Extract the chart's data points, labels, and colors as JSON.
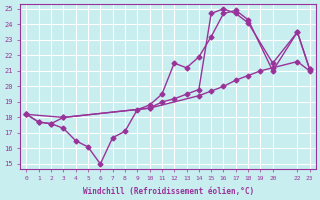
{
  "xlabel": "Windchill (Refroidissement éolien,°C)",
  "bg_color": "#c8eef0",
  "line_color": "#993399",
  "grid_color": "#ffffff",
  "xlim": [
    -0.5,
    23.5
  ],
  "ylim": [
    14.7,
    25.3
  ],
  "xticks": [
    0,
    1,
    2,
    3,
    4,
    5,
    6,
    7,
    8,
    9,
    10,
    11,
    12,
    13,
    14,
    15,
    16,
    17,
    18,
    19,
    20,
    22,
    23
  ],
  "yticks": [
    15,
    16,
    17,
    18,
    19,
    20,
    21,
    22,
    23,
    24,
    25
  ],
  "line1_x": [
    0,
    1,
    2,
    3,
    4,
    5,
    6,
    7,
    8,
    9,
    10,
    11,
    12,
    13,
    14,
    15,
    16,
    17,
    18,
    20,
    22,
    23
  ],
  "line1_y": [
    18.2,
    17.7,
    17.6,
    17.3,
    16.5,
    16.1,
    15.0,
    16.7,
    17.1,
    18.5,
    18.8,
    19.5,
    21.5,
    21.2,
    21.9,
    23.2,
    24.7,
    24.9,
    24.3,
    21.0,
    23.5,
    21.1
  ],
  "line2_x": [
    0,
    1,
    2,
    3,
    10,
    14,
    15,
    16,
    17,
    18,
    19,
    20,
    22,
    23
  ],
  "line2_y": [
    18.2,
    17.7,
    17.6,
    18.0,
    18.6,
    19.4,
    19.7,
    20.0,
    20.4,
    20.7,
    21.0,
    21.2,
    21.6,
    21.0
  ],
  "line3_x": [
    0,
    3,
    10,
    11,
    12,
    13,
    14,
    15,
    16,
    17,
    18,
    20,
    22,
    23
  ],
  "line3_y": [
    18.2,
    18.0,
    18.6,
    19.0,
    19.2,
    19.5,
    19.8,
    24.7,
    25.0,
    24.7,
    24.1,
    21.5,
    23.5,
    21.1
  ],
  "marker": "D",
  "markersize": 2.5,
  "linewidth": 1.0
}
